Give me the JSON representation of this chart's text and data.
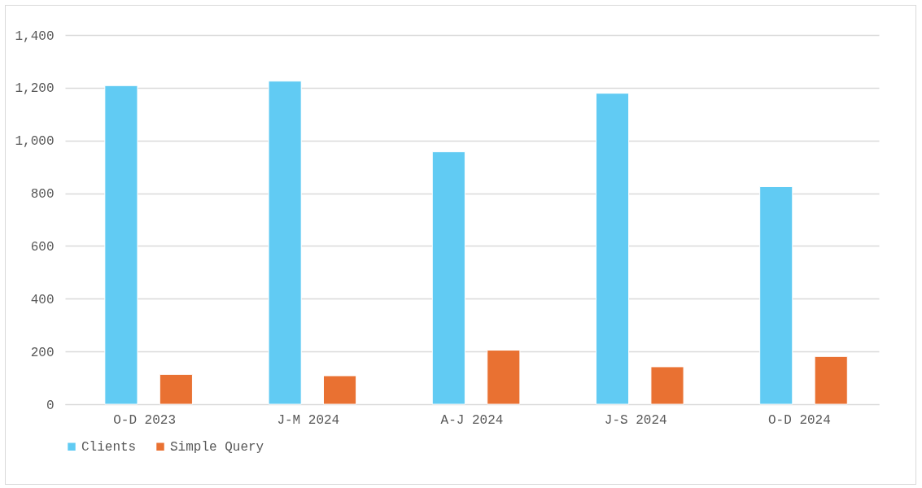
{
  "chart_data": {
    "type": "bar",
    "categories": [
      "O-D 2023",
      "J-M 2024",
      "A-J 2024",
      "J-S 2024",
      "O-D 2024"
    ],
    "series": [
      {
        "name": "Clients",
        "color": "#61cbf3",
        "values": [
          1208,
          1225,
          957,
          1179,
          825
        ]
      },
      {
        "name": "Simple Query",
        "color": "#e97132",
        "values": [
          113,
          108,
          205,
          142,
          181
        ]
      }
    ],
    "ylim": [
      0,
      1400
    ],
    "yticks": [
      {
        "value": 0,
        "label": "0"
      },
      {
        "value": 200,
        "label": "200"
      },
      {
        "value": 400,
        "label": "400"
      },
      {
        "value": 600,
        "label": "600"
      },
      {
        "value": 800,
        "label": "800"
      },
      {
        "value": 1000,
        "label": "1,000"
      },
      {
        "value": 1200,
        "label": "1,200"
      },
      {
        "value": 1400,
        "label": "1,400"
      }
    ],
    "grid": "y",
    "legend": "bottom"
  }
}
